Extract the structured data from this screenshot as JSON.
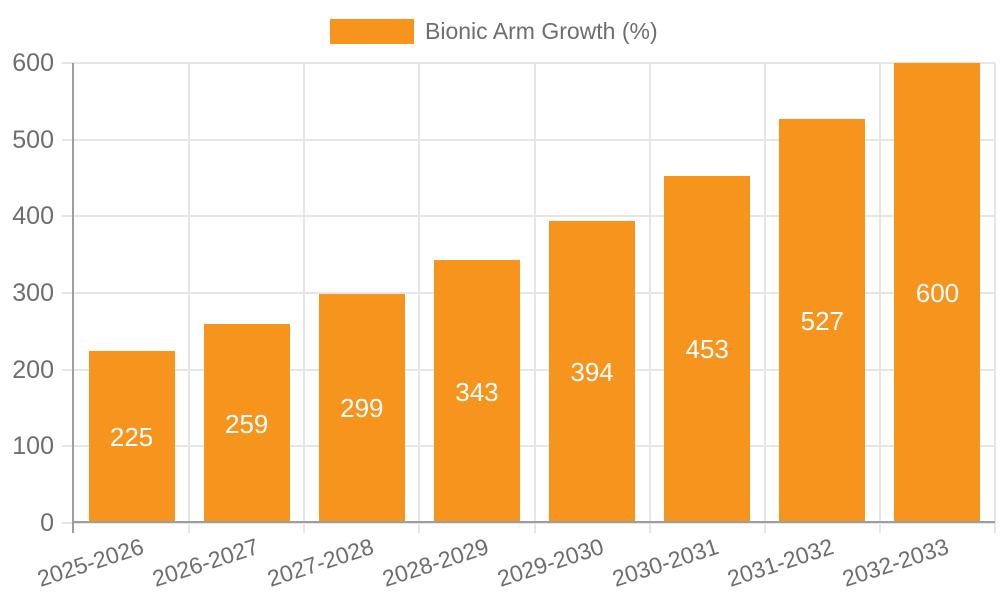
{
  "chart_data": {
    "type": "bar",
    "legend": "Bionic Arm Growth (%)",
    "title": "",
    "xlabel": "",
    "ylabel": "",
    "categories": [
      "2025-2026",
      "2026-2027",
      "2027-2028",
      "2028-2029",
      "2029-2030",
      "2030-2031",
      "2031-2032",
      "2032-2033"
    ],
    "values": [
      225,
      259,
      299,
      343,
      394,
      453,
      527,
      600
    ],
    "ylim": [
      0,
      600
    ],
    "yticks": [
      0,
      100,
      200,
      300,
      400,
      500,
      600
    ],
    "legend_position": "top-center",
    "grid": true,
    "bar_label_position": "inside-center",
    "colors": {
      "bar": "#F7941E",
      "bar_label": "#FFFFFF",
      "axis_text": "#6E6E6E",
      "legend_text": "#6E6E6E",
      "gridline": "#E6E6E6",
      "axis_line": "#9E9E9E",
      "background": "#FFFFFF"
    }
  }
}
